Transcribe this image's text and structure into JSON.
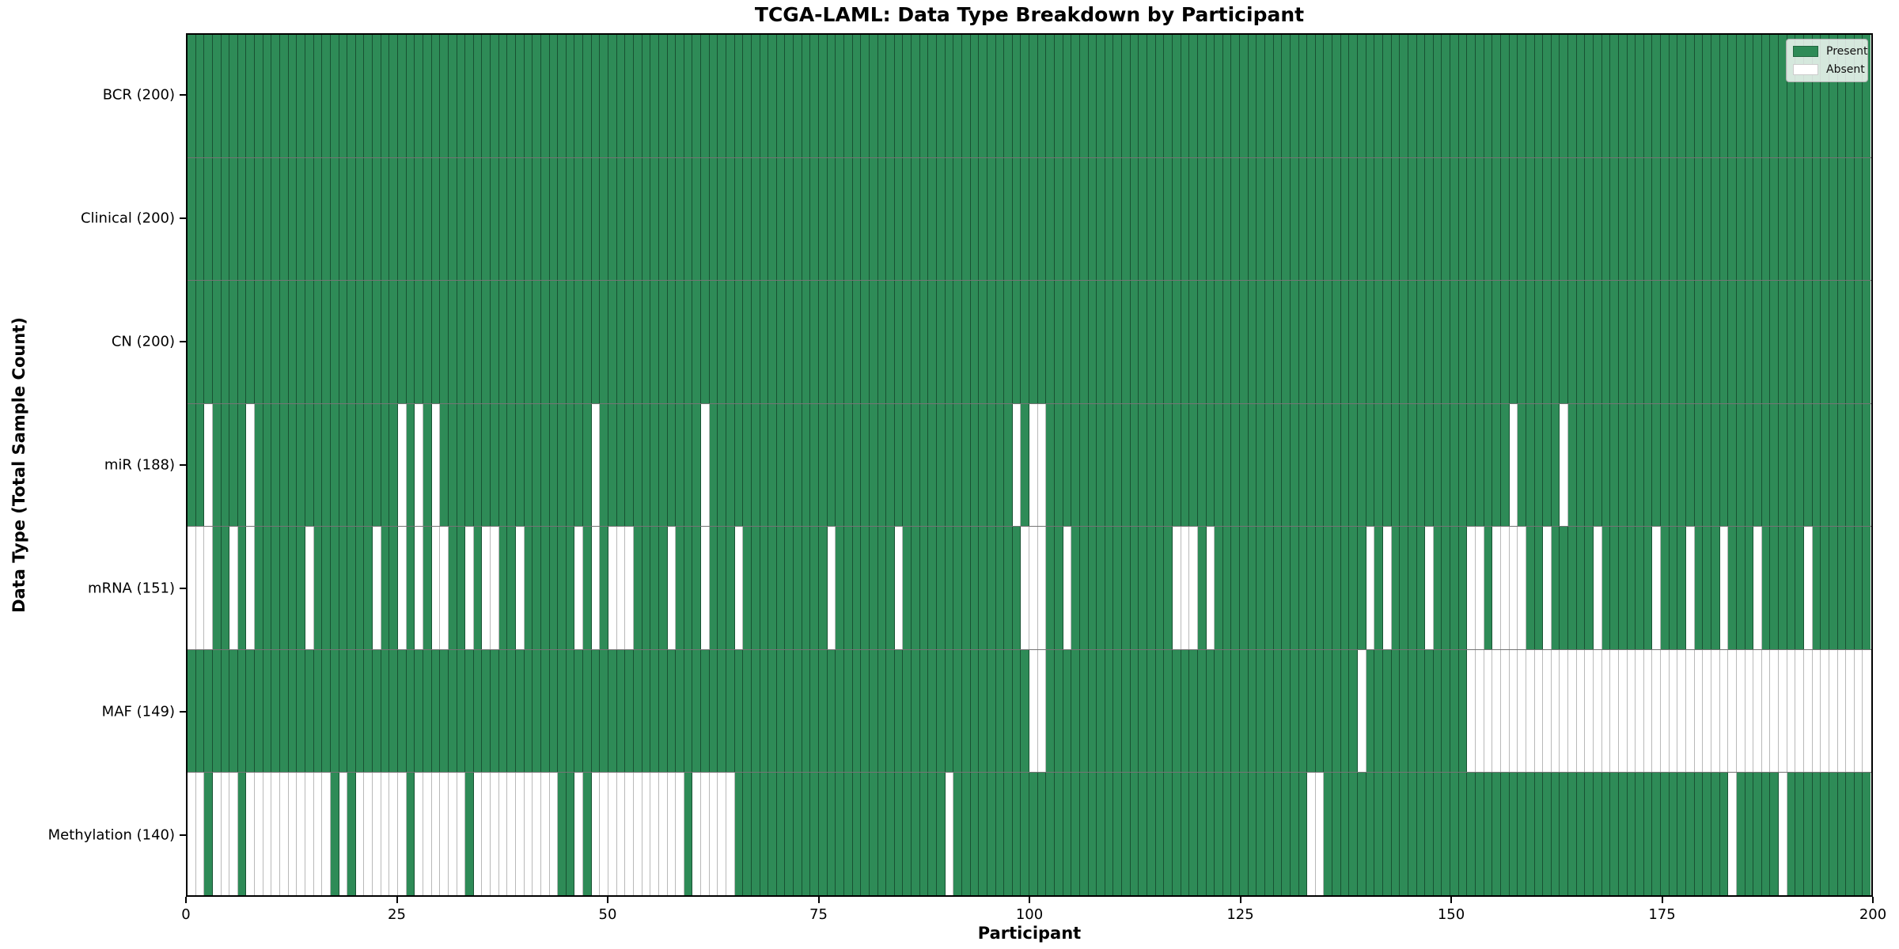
{
  "title": "TCGA-LAML: Data Type Breakdown by Participant",
  "x_axis_label": "Participant",
  "y_axis_label": "Data Type (Total Sample Count)",
  "legend": {
    "present_label": "Present",
    "absent_label": "Absent",
    "position": "upper right"
  },
  "colors": {
    "present": "#2e8b57",
    "absent": "#ffffff",
    "plot_border": "#000000",
    "row_separator": "#464646",
    "text": "#000000"
  },
  "x_ticks": [
    "0",
    "25",
    "50",
    "75",
    "100",
    "125",
    "150",
    "175",
    "200"
  ],
  "chart_data": {
    "type": "heatmap",
    "title": "TCGA-LAML: Data Type Breakdown by Participant",
    "xlabel": "Participant",
    "ylabel": "Data Type (Total Sample Count)",
    "x_range": [
      0,
      200
    ],
    "n_participants": 200,
    "x_tick_values": [
      0,
      25,
      50,
      75,
      100,
      125,
      150,
      175,
      200
    ],
    "legend": [
      "Present",
      "Absent"
    ],
    "legend_position": "upper right",
    "grid": "cell-borders",
    "rows": [
      {
        "label": "BCR (200)",
        "data_type": "BCR",
        "present_count": 200,
        "absent_participants": []
      },
      {
        "label": "Clinical (200)",
        "data_type": "Clinical",
        "present_count": 200,
        "absent_participants": []
      },
      {
        "label": "CN (200)",
        "data_type": "CN",
        "present_count": 200,
        "absent_participants": []
      },
      {
        "label": "miR (188)",
        "data_type": "miR",
        "present_count": 188,
        "absent_participants": [
          2,
          7,
          25,
          27,
          29,
          48,
          61,
          98,
          100,
          101,
          157,
          163
        ]
      },
      {
        "label": "mRNA (151)",
        "data_type": "mRNA",
        "present_count": 151,
        "absent_participants": [
          0,
          1,
          2,
          5,
          7,
          14,
          22,
          25,
          27,
          29,
          30,
          33,
          35,
          36,
          39,
          46,
          48,
          50,
          51,
          52,
          57,
          61,
          65,
          76,
          84,
          99,
          100,
          101,
          104,
          117,
          118,
          119,
          121,
          140,
          142,
          147,
          152,
          153,
          155,
          156,
          157,
          158,
          161,
          167,
          174,
          178,
          182,
          186,
          192
        ]
      },
      {
        "label": "MAF (149)",
        "data_type": "MAF",
        "present_count": 149,
        "absent_participants": [
          100,
          101,
          139,
          152,
          153,
          154,
          155,
          156,
          157,
          158,
          159,
          160,
          161,
          162,
          163,
          164,
          165,
          166,
          167,
          168,
          169,
          170,
          171,
          172,
          173,
          174,
          175,
          176,
          177,
          178,
          179,
          180,
          181,
          182,
          183,
          184,
          185,
          186,
          187,
          188,
          189,
          190,
          191,
          192,
          193,
          194,
          195,
          196,
          197,
          198,
          199
        ]
      },
      {
        "label": "Methylation (140)",
        "data_type": "Methylation",
        "present_count": 140,
        "absent_participants": [
          0,
          1,
          3,
          4,
          5,
          7,
          8,
          9,
          10,
          11,
          12,
          13,
          14,
          15,
          16,
          18,
          20,
          21,
          22,
          23,
          24,
          25,
          27,
          28,
          29,
          30,
          31,
          32,
          34,
          35,
          36,
          37,
          38,
          39,
          40,
          41,
          42,
          43,
          46,
          48,
          49,
          50,
          51,
          52,
          53,
          54,
          55,
          56,
          57,
          58,
          60,
          61,
          62,
          63,
          64,
          90,
          133,
          134,
          183,
          189
        ]
      }
    ]
  }
}
